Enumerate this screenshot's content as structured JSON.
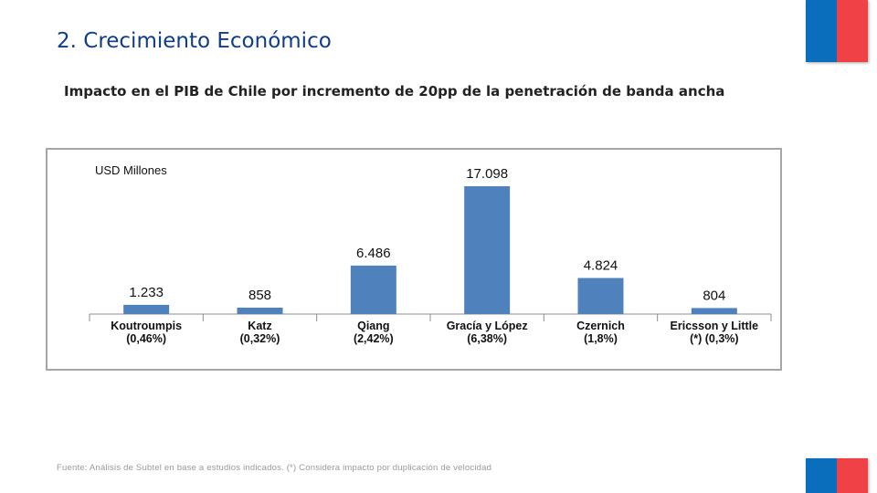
{
  "page": {
    "title": "2. Crecimiento Económico",
    "subtitle": "Impacto en el PIB de Chile por incremento de 20pp de la penetración de banda ancha",
    "footnote": "Fuente: Análisis de Subtel en base a estudios indicados. (*) Considera impacto por duplicación de velocidad"
  },
  "colors": {
    "title": "#0f3d8c",
    "bar": "#4f81bd",
    "flag_blue": "#0a6ebd",
    "flag_red": "#ef4146",
    "border": "#a6a6a6",
    "axis": "#8c8c8c",
    "text": "#111111"
  },
  "chart_data": {
    "type": "bar",
    "ylabel": "USD Millones",
    "categories": [
      [
        "Koutroumpis",
        "(0,46%)"
      ],
      [
        "Katz",
        "(0,32%)"
      ],
      [
        "Qiang",
        "(2,42%)"
      ],
      [
        "Gracía y López",
        "(6,38%)"
      ],
      [
        "Czernich",
        "(1,8%)"
      ],
      [
        "Ericsson y Little",
        "(*) (0,3%)"
      ]
    ],
    "values": [
      1233,
      858,
      6486,
      17098,
      4824,
      804
    ],
    "value_labels": [
      "1.233",
      "858",
      "6.486",
      "17.098",
      "4.824",
      "804"
    ],
    "ylim": [
      0,
      17098
    ],
    "grid": false,
    "legend": "none"
  }
}
